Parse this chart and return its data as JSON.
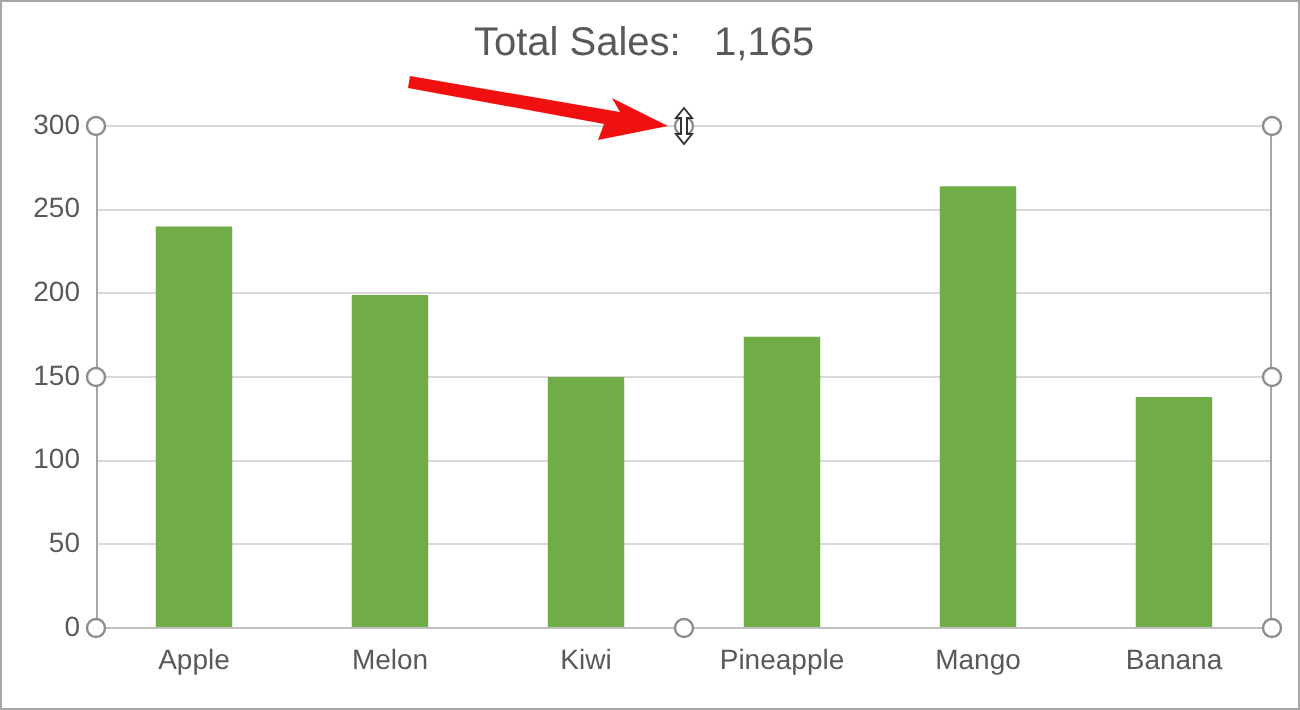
{
  "chart_data": {
    "type": "bar",
    "title": "Total Sales:   1,165",
    "categories": [
      "Apple",
      "Melon",
      "Kiwi",
      "Pineapple",
      "Mango",
      "Banana"
    ],
    "values": [
      240,
      199,
      150,
      174,
      264,
      138
    ],
    "color": "#70ad47",
    "ylim": [
      0,
      300
    ],
    "yticks": [
      0,
      50,
      100,
      150,
      200,
      250,
      300
    ],
    "grid": "y"
  }
}
